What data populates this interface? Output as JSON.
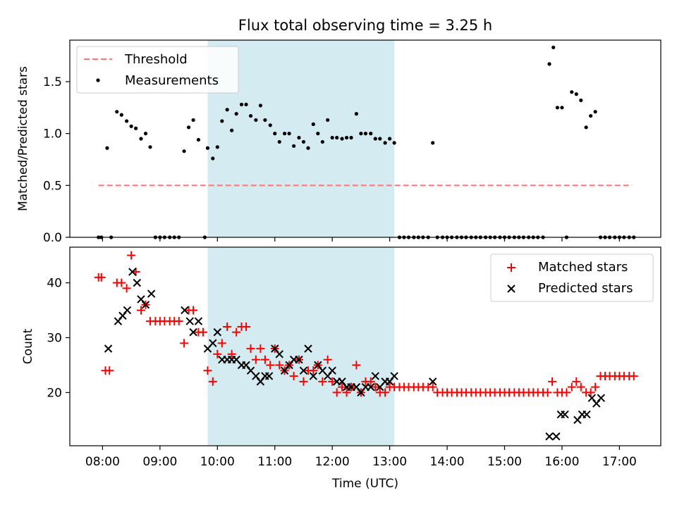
{
  "chart_data": [
    {
      "type": "scatter",
      "title": "Flux total observing time = 3.25 h",
      "xlabel": "",
      "ylabel": "Matched/Predicted stars",
      "ylim": [
        0,
        1.9
      ],
      "yticks": [
        "0.0",
        "0.5",
        "1.0",
        "1.5"
      ],
      "xlim_hours": [
        7.43,
        17.72
      ],
      "highlight_span_hours": [
        9.83,
        13.08
      ],
      "legend_position": "upper-left",
      "series": [
        {
          "name": "Threshold",
          "kind": "dashed-line",
          "color": "#ff7b7b",
          "x": [
            7.93,
            17.22
          ],
          "y": [
            0.5,
            0.5
          ]
        },
        {
          "name": "Measurements",
          "kind": "dots",
          "color": "#000000",
          "x": [
            7.93,
            7.98,
            8.08,
            8.15,
            8.25,
            8.33,
            8.42,
            8.5,
            8.58,
            8.67,
            8.75,
            8.83,
            8.92,
            9.0,
            9.08,
            9.17,
            9.25,
            9.33,
            9.42,
            9.5,
            9.58,
            9.67,
            9.78,
            9.83,
            9.92,
            10.0,
            10.08,
            10.17,
            10.25,
            10.33,
            10.42,
            10.5,
            10.58,
            10.67,
            10.75,
            10.83,
            10.92,
            11.0,
            11.08,
            11.17,
            11.25,
            11.33,
            11.42,
            11.5,
            11.58,
            11.67,
            11.75,
            11.83,
            11.92,
            12.0,
            12.08,
            12.17,
            12.25,
            12.33,
            12.42,
            12.5,
            12.58,
            12.67,
            12.75,
            12.83,
            12.92,
            13.0,
            13.08,
            13.17,
            13.25,
            13.33,
            13.42,
            13.5,
            13.58,
            13.67,
            13.75,
            13.83,
            13.92,
            14.0,
            14.08,
            14.17,
            14.25,
            14.33,
            14.42,
            14.5,
            14.58,
            14.67,
            14.75,
            14.83,
            14.92,
            15.0,
            15.08,
            15.17,
            15.25,
            15.33,
            15.42,
            15.5,
            15.58,
            15.67,
            15.78,
            15.85,
            15.92,
            16.0,
            16.08,
            16.17,
            16.25,
            16.33,
            16.42,
            16.5,
            16.58,
            16.67,
            16.75,
            16.83,
            16.92,
            17.0,
            17.08,
            17.17,
            17.25
          ],
          "y": [
            0,
            0,
            0.86,
            0,
            1.21,
            1.18,
            1.12,
            1.07,
            1.05,
            0.95,
            1.0,
            0.87,
            0,
            0,
            0,
            0,
            0,
            0,
            0.83,
            1.06,
            1.13,
            0.94,
            0,
            0.86,
            0.76,
            0.87,
            1.12,
            1.23,
            1.03,
            1.19,
            1.28,
            1.28,
            1.17,
            1.13,
            1.27,
            1.13,
            1.08,
            1.0,
            0.92,
            1.0,
            1.0,
            0.88,
            0.96,
            0.92,
            0.86,
            1.09,
            1.0,
            0.92,
            1.13,
            0.96,
            0.96,
            0.95,
            0.96,
            0.96,
            1.19,
            1.0,
            1.0,
            1.0,
            0.95,
            0.95,
            0.91,
            0.95,
            0.91,
            0,
            0,
            0,
            0,
            0,
            0,
            0,
            0.91,
            0,
            0,
            0,
            0,
            0,
            0,
            0,
            0,
            0,
            0,
            0,
            0,
            0,
            0,
            0,
            0,
            0,
            0,
            0,
            0,
            0,
            0,
            0,
            1.67,
            1.83,
            1.25,
            1.25,
            0,
            1.4,
            1.38,
            1.32,
            1.06,
            1.17,
            1.21,
            0,
            0,
            0,
            0,
            0,
            0,
            0,
            0
          ]
        }
      ]
    },
    {
      "type": "scatter",
      "title": "",
      "xlabel": "Time (UTC)",
      "ylabel": "Count",
      "ylim": [
        10.3,
        46.5
      ],
      "yticks": [
        "20",
        "30",
        "40"
      ],
      "xtick_labels": [
        "08:00",
        "09:00",
        "10:00",
        "11:00",
        "12:00",
        "13:00",
        "14:00",
        "15:00",
        "16:00",
        "17:00"
      ],
      "legend_position": "upper-right",
      "series": [
        {
          "name": "Matched stars",
          "marker": "+",
          "color": "#ff0000",
          "x": [
            7.93,
            7.98,
            8.05,
            8.12,
            8.25,
            8.33,
            8.42,
            8.5,
            8.58,
            8.67,
            8.75,
            8.83,
            8.92,
            9.0,
            9.08,
            9.17,
            9.25,
            9.33,
            9.42,
            9.5,
            9.58,
            9.67,
            9.75,
            9.83,
            9.92,
            10.0,
            10.08,
            10.17,
            10.25,
            10.33,
            10.42,
            10.5,
            10.58,
            10.67,
            10.75,
            10.83,
            10.92,
            11.0,
            11.08,
            11.17,
            11.25,
            11.33,
            11.42,
            11.5,
            11.58,
            11.67,
            11.75,
            11.83,
            11.92,
            12.0,
            12.08,
            12.17,
            12.25,
            12.33,
            12.42,
            12.5,
            12.58,
            12.67,
            12.75,
            12.83,
            12.92,
            13.0,
            13.08,
            13.17,
            13.25,
            13.33,
            13.42,
            13.5,
            13.58,
            13.67,
            13.75,
            13.83,
            13.92,
            14.0,
            14.08,
            14.17,
            14.25,
            14.33,
            14.42,
            14.5,
            14.58,
            14.67,
            14.75,
            14.83,
            14.92,
            15.0,
            15.08,
            15.17,
            15.25,
            15.33,
            15.42,
            15.5,
            15.58,
            15.67,
            15.75,
            15.83,
            15.92,
            16.0,
            16.08,
            16.17,
            16.25,
            16.33,
            16.42,
            16.5,
            16.58,
            16.67,
            16.75,
            16.83,
            16.92,
            17.0,
            17.08,
            17.17,
            17.25
          ],
          "y": [
            41,
            41,
            24,
            24,
            40,
            40,
            39,
            45,
            42,
            35,
            36,
            33,
            33,
            33,
            33,
            33,
            33,
            33,
            29,
            35,
            35,
            31,
            31,
            24,
            22,
            27,
            29,
            32,
            27,
            31,
            32,
            32,
            28,
            26,
            28,
            26,
            25,
            28,
            25,
            24,
            25,
            23,
            26,
            22,
            24,
            24,
            25,
            22,
            26,
            22,
            20,
            21,
            20,
            21,
            25,
            20,
            22,
            22,
            21,
            20,
            20,
            21,
            21,
            21,
            21,
            21,
            21,
            21,
            21,
            21,
            21,
            20,
            20,
            20,
            20,
            20,
            20,
            20,
            20,
            20,
            20,
            20,
            20,
            20,
            20,
            20,
            20,
            20,
            20,
            20,
            20,
            20,
            20,
            20,
            20,
            22,
            20,
            20,
            20,
            21,
            22,
            21,
            20,
            20,
            21,
            23,
            23,
            23,
            23,
            23,
            23,
            23,
            23
          ]
        },
        {
          "name": "Predicted stars",
          "marker": "x",
          "color": "#000000",
          "x": [
            8.1,
            8.27,
            8.35,
            8.43,
            8.52,
            8.6,
            8.67,
            8.75,
            8.85,
            9.43,
            9.52,
            9.58,
            9.67,
            9.83,
            9.92,
            10.0,
            10.08,
            10.17,
            10.25,
            10.33,
            10.42,
            10.5,
            10.58,
            10.67,
            10.75,
            10.83,
            10.9,
            11.0,
            11.08,
            11.17,
            11.25,
            11.33,
            11.42,
            11.5,
            11.58,
            11.67,
            11.75,
            11.83,
            11.92,
            12.0,
            12.08,
            12.17,
            12.25,
            12.33,
            12.42,
            12.5,
            12.58,
            12.67,
            12.75,
            12.83,
            12.92,
            13.0,
            13.08,
            13.75,
            15.78,
            15.9,
            15.98,
            16.05,
            16.27,
            16.35,
            16.43,
            16.52,
            16.6,
            16.68
          ],
          "y": [
            28,
            33,
            34,
            35,
            42,
            40,
            37,
            36,
            38,
            35,
            33,
            31,
            33,
            28,
            29,
            31,
            26,
            26,
            26,
            26,
            25,
            25,
            24,
            23,
            22,
            23,
            23,
            28,
            27,
            24,
            25,
            26,
            26,
            24,
            28,
            23,
            25,
            24,
            23,
            24,
            22,
            22,
            21,
            21,
            21,
            20,
            21,
            21,
            23,
            21,
            22,
            22,
            23,
            22,
            12,
            12,
            16,
            16,
            15,
            16,
            16,
            19,
            18,
            19
          ]
        }
      ]
    }
  ]
}
